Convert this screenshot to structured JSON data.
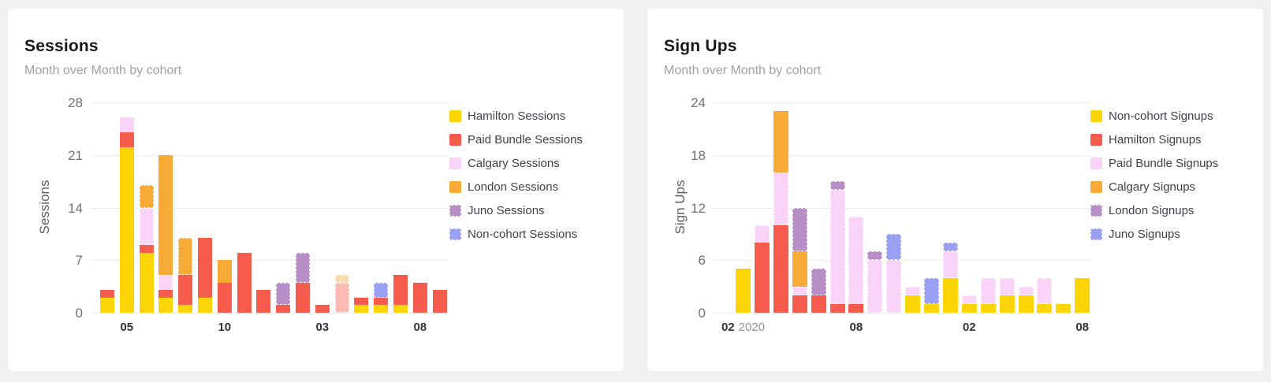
{
  "page": {
    "background": "#F0F0EF",
    "card_background": "#FFFFFF",
    "gridline_color": "#EDEDED",
    "tick_text_color": "#6E7277",
    "x_tick_color": "#303338",
    "x_subtick_color": "#8E9297",
    "title_color": "#17181A",
    "subtitle_color": "#9DA0A6",
    "legend_text_color": "#3F4247"
  },
  "chart_data": [
    {
      "type": "bar",
      "stacked": true,
      "title": "Sessions",
      "subtitle": "Month over Month by cohort",
      "ylabel": "Sessions",
      "ylim": [
        0,
        28
      ],
      "yticks": [
        0,
        7,
        14,
        21,
        28
      ],
      "grid": true,
      "legend_position": "right",
      "x_ticks": [
        {
          "bar_index": 1,
          "label": "05"
        },
        {
          "bar_index": 6,
          "label": "10"
        },
        {
          "bar_index": 11,
          "label": "03"
        },
        {
          "bar_index": 16,
          "label": "08"
        }
      ],
      "series": [
        {
          "name": "Hamilton Sessions",
          "color": "#FCD507",
          "values": [
            2,
            22,
            8,
            2,
            1,
            2,
            0,
            0,
            0,
            0,
            0,
            0,
            0,
            1,
            1,
            1,
            0,
            0
          ]
        },
        {
          "name": "Paid Bundle Sessions",
          "color": "#F65C4D",
          "values": [
            1,
            2,
            1,
            1,
            4,
            8,
            4,
            8,
            3,
            1,
            4,
            1,
            4,
            1,
            1,
            4,
            4,
            3
          ]
        },
        {
          "name": "Calgary Sessions",
          "color": "#FAD3F9",
          "values": [
            0,
            2,
            5,
            2,
            0,
            0,
            0,
            0,
            0,
            0,
            0,
            0,
            0,
            0,
            0,
            0,
            0,
            0
          ]
        },
        {
          "name": "London Sessions",
          "color": "#F7AA36",
          "values": [
            0,
            0,
            3,
            16,
            5,
            0,
            3,
            0,
            0,
            0,
            0,
            0,
            1,
            0,
            0,
            0,
            0,
            0
          ]
        },
        {
          "name": "Juno Sessions",
          "color": "#B88EC6",
          "values": [
            0,
            0,
            0,
            0,
            0,
            0,
            0,
            0,
            0,
            3,
            4,
            0,
            0,
            0,
            0,
            0,
            0,
            0
          ]
        },
        {
          "name": "Non-cohort Sessions",
          "color": "#99A0F3",
          "values": [
            0,
            0,
            0,
            0,
            0,
            0,
            0,
            0,
            0,
            0,
            0,
            0,
            0,
            0,
            2,
            0,
            0,
            0
          ]
        }
      ],
      "dashed_series": [
        4,
        5
      ],
      "extra_dashed_segments": [
        [
          2,
          2
        ],
        [
          2,
          3
        ],
        [
          3,
          2
        ],
        [
          4,
          3
        ],
        [
          12,
          1
        ],
        [
          12,
          3
        ]
      ],
      "faded_bars": [
        12
      ],
      "legend_dashed": [
        4,
        5
      ]
    },
    {
      "type": "bar",
      "stacked": true,
      "title": "Sign Ups",
      "subtitle": "Month over Month by cohort",
      "ylabel": "Sign Ups",
      "ylim": [
        0,
        24
      ],
      "yticks": [
        0,
        6,
        12,
        18,
        24
      ],
      "grid": true,
      "legend_position": "right",
      "x_ticks": [
        {
          "bar_index": 0,
          "label": "02",
          "sublabel": "2020"
        },
        {
          "bar_index": 6,
          "label": "08"
        },
        {
          "bar_index": 12,
          "label": "02"
        },
        {
          "bar_index": 18,
          "label": "08"
        }
      ],
      "series": [
        {
          "name": "Non-cohort Signups",
          "color": "#FCD507",
          "values": [
            5,
            0,
            0,
            0,
            0,
            0,
            0,
            0,
            0,
            2,
            1,
            4,
            1,
            1,
            2,
            2,
            1,
            1,
            4
          ]
        },
        {
          "name": "Hamilton Signups",
          "color": "#F65C4D",
          "values": [
            0,
            8,
            10,
            2,
            2,
            1,
            1,
            0,
            0,
            0,
            0,
            0,
            0,
            0,
            0,
            0,
            0,
            0,
            0
          ]
        },
        {
          "name": "Paid Bundle Signups",
          "color": "#FAD3F9",
          "values": [
            0,
            2,
            6,
            1,
            0,
            13,
            10,
            6,
            6,
            1,
            0,
            3,
            1,
            3,
            2,
            1,
            3,
            0,
            0
          ]
        },
        {
          "name": "Calgary Signups",
          "color": "#F7AA36",
          "values": [
            0,
            0,
            7,
            4,
            0,
            0,
            0,
            0,
            0,
            0,
            0,
            0,
            0,
            0,
            0,
            0,
            0,
            0,
            0
          ]
        },
        {
          "name": "London Signups",
          "color": "#B88EC6",
          "values": [
            0,
            0,
            0,
            5,
            3,
            1,
            0,
            1,
            0,
            0,
            0,
            0,
            0,
            0,
            0,
            0,
            0,
            0,
            0
          ]
        },
        {
          "name": "Juno Signups",
          "color": "#99A0F3",
          "values": [
            0,
            0,
            0,
            0,
            0,
            0,
            0,
            0,
            3,
            0,
            3,
            1,
            0,
            0,
            0,
            0,
            0,
            0,
            0
          ]
        }
      ],
      "dashed_series": [
        2,
        4,
        5
      ],
      "extra_dashed_segments": [],
      "faded_bars": [],
      "legend_dashed": [
        4,
        5
      ]
    }
  ]
}
